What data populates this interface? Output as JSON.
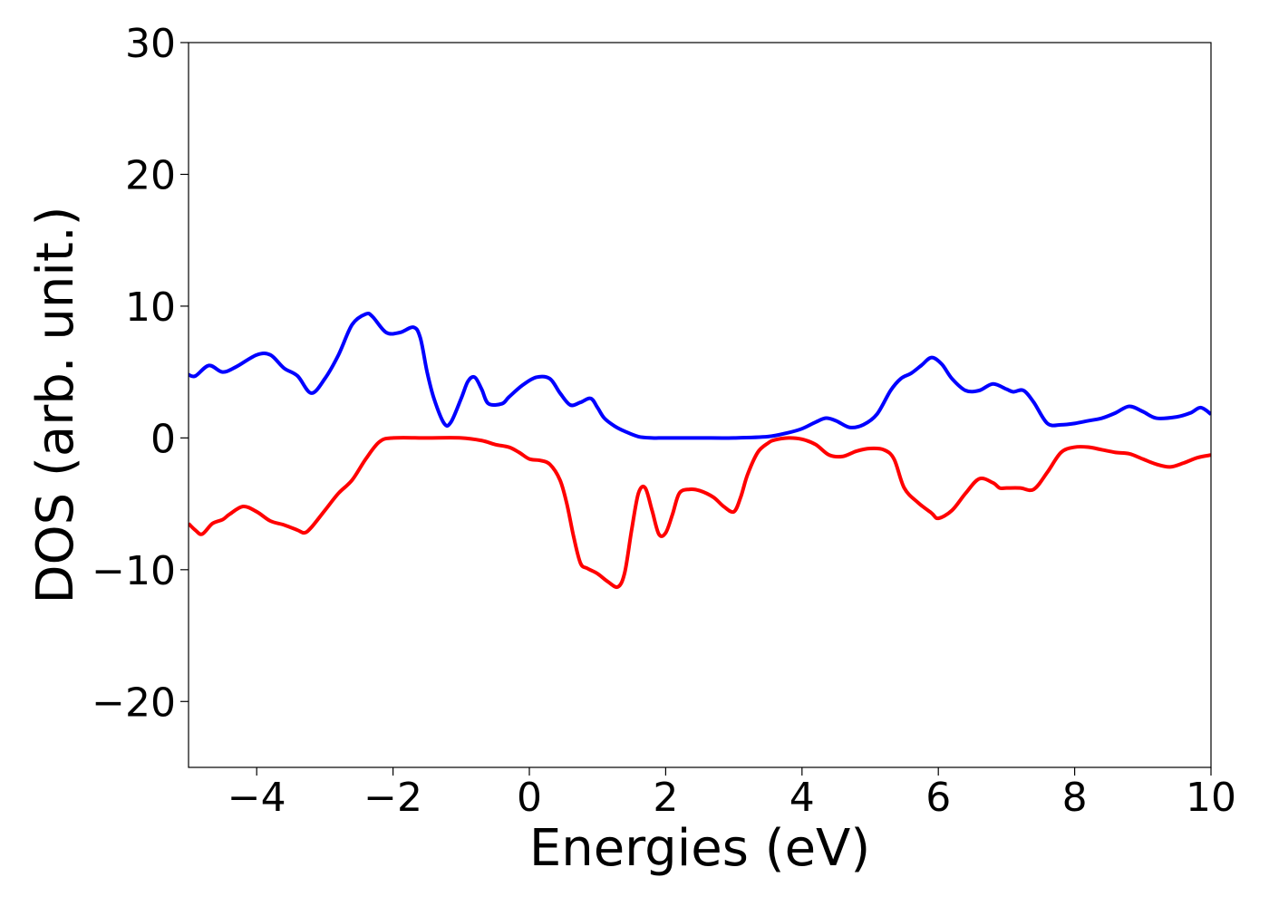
{
  "chart_data": {
    "type": "line",
    "title": "",
    "xlabel": "Energies (eV)",
    "ylabel": "DOS (arb. unit.)",
    "xlim": [
      -5,
      10
    ],
    "ylim": [
      -25,
      30
    ],
    "xticks": [
      -4,
      -2,
      0,
      2,
      4,
      6,
      8,
      10
    ],
    "xtick_labels": [
      "−4",
      "−2",
      "0",
      "2",
      "4",
      "6",
      "8",
      "10"
    ],
    "yticks": [
      30,
      20,
      10,
      0,
      -10,
      -20
    ],
    "ytick_labels": [
      "30",
      "20",
      "10",
      "0",
      "−10",
      "−20"
    ],
    "grid": false,
    "legend": "none",
    "series": [
      {
        "color": "#0000ff",
        "x": [
          -5.0,
          -4.9,
          -4.7,
          -4.5,
          -4.3,
          -4.0,
          -3.8,
          -3.6,
          -3.4,
          -3.2,
          -3.0,
          -2.8,
          -2.6,
          -2.4,
          -2.3,
          -2.1,
          -1.9,
          -1.7,
          -1.6,
          -1.5,
          -1.4,
          -1.25,
          -1.15,
          -1.0,
          -0.9,
          -0.8,
          -0.7,
          -0.6,
          -0.4,
          -0.3,
          -0.1,
          0.1,
          0.3,
          0.45,
          0.6,
          0.75,
          0.9,
          1.0,
          1.1,
          1.25,
          1.4,
          1.6,
          1.8,
          2.0,
          2.5,
          3.0,
          3.5,
          3.8,
          4.0,
          4.2,
          4.35,
          4.5,
          4.7,
          4.9,
          5.1,
          5.3,
          5.45,
          5.6,
          5.75,
          5.9,
          6.05,
          6.2,
          6.4,
          6.6,
          6.8,
          7.0,
          7.1,
          7.25,
          7.4,
          7.6,
          7.8,
          8.0,
          8.2,
          8.4,
          8.6,
          8.8,
          9.0,
          9.2,
          9.5,
          9.7,
          9.85,
          10.0
        ],
        "y": [
          4.8,
          4.7,
          5.5,
          5.0,
          5.4,
          6.3,
          6.3,
          5.3,
          4.7,
          3.4,
          4.5,
          6.3,
          8.6,
          9.4,
          9.2,
          8.0,
          8.0,
          8.4,
          7.6,
          5.0,
          3.0,
          1.1,
          1.2,
          3.0,
          4.3,
          4.6,
          3.7,
          2.6,
          2.6,
          3.1,
          4.0,
          4.6,
          4.5,
          3.4,
          2.5,
          2.7,
          3.0,
          2.3,
          1.5,
          0.9,
          0.5,
          0.1,
          0.0,
          0.0,
          0.0,
          0.0,
          0.1,
          0.4,
          0.7,
          1.2,
          1.5,
          1.3,
          0.8,
          1.0,
          1.8,
          3.6,
          4.5,
          4.9,
          5.5,
          6.1,
          5.6,
          4.5,
          3.6,
          3.6,
          4.1,
          3.7,
          3.5,
          3.6,
          2.7,
          1.1,
          1.0,
          1.1,
          1.3,
          1.5,
          1.9,
          2.4,
          2.0,
          1.5,
          1.6,
          1.9,
          2.3,
          1.8
        ]
      },
      {
        "color": "#ff0000",
        "x": [
          -5.0,
          -4.9,
          -4.8,
          -4.65,
          -4.5,
          -4.4,
          -4.2,
          -4.0,
          -3.8,
          -3.6,
          -3.4,
          -3.3,
          -3.2,
          -3.0,
          -2.8,
          -2.6,
          -2.4,
          -2.2,
          -2.0,
          -1.5,
          -1.0,
          -0.7,
          -0.5,
          -0.3,
          -0.15,
          0.0,
          0.15,
          0.3,
          0.45,
          0.55,
          0.65,
          0.75,
          0.85,
          1.0,
          1.15,
          1.3,
          1.4,
          1.5,
          1.6,
          1.7,
          1.8,
          1.9,
          2.0,
          2.1,
          2.2,
          2.35,
          2.5,
          2.7,
          2.85,
          3.0,
          3.1,
          3.2,
          3.35,
          3.5,
          3.6,
          3.8,
          4.0,
          4.2,
          4.4,
          4.6,
          4.8,
          5.0,
          5.2,
          5.35,
          5.5,
          5.7,
          5.9,
          6.0,
          6.2,
          6.4,
          6.6,
          6.8,
          6.9,
          7.0,
          7.2,
          7.4,
          7.6,
          7.8,
          8.0,
          8.2,
          8.4,
          8.6,
          8.8,
          9.0,
          9.2,
          9.4,
          9.6,
          9.8,
          10.0
        ],
        "y": [
          -6.5,
          -7.0,
          -7.3,
          -6.5,
          -6.2,
          -5.8,
          -5.2,
          -5.6,
          -6.3,
          -6.6,
          -7.0,
          -7.2,
          -6.8,
          -5.5,
          -4.2,
          -3.2,
          -1.6,
          -0.3,
          0.0,
          0.0,
          0.0,
          -0.2,
          -0.5,
          -0.7,
          -1.1,
          -1.6,
          -1.7,
          -2.0,
          -3.2,
          -5.0,
          -7.5,
          -9.5,
          -9.9,
          -10.3,
          -10.9,
          -11.3,
          -10.2,
          -7.0,
          -4.2,
          -3.8,
          -5.5,
          -7.3,
          -7.2,
          -5.8,
          -4.2,
          -3.9,
          -4.0,
          -4.5,
          -5.2,
          -5.6,
          -4.5,
          -2.8,
          -1.1,
          -0.4,
          -0.15,
          0.0,
          -0.1,
          -0.5,
          -1.3,
          -1.4,
          -1.0,
          -0.8,
          -0.9,
          -1.6,
          -3.8,
          -4.9,
          -5.7,
          -6.1,
          -5.5,
          -4.2,
          -3.1,
          -3.4,
          -3.8,
          -3.8,
          -3.8,
          -3.9,
          -2.6,
          -1.1,
          -0.7,
          -0.7,
          -0.9,
          -1.1,
          -1.2,
          -1.6,
          -2.0,
          -2.2,
          -1.9,
          -1.5,
          -1.3
        ]
      }
    ]
  }
}
